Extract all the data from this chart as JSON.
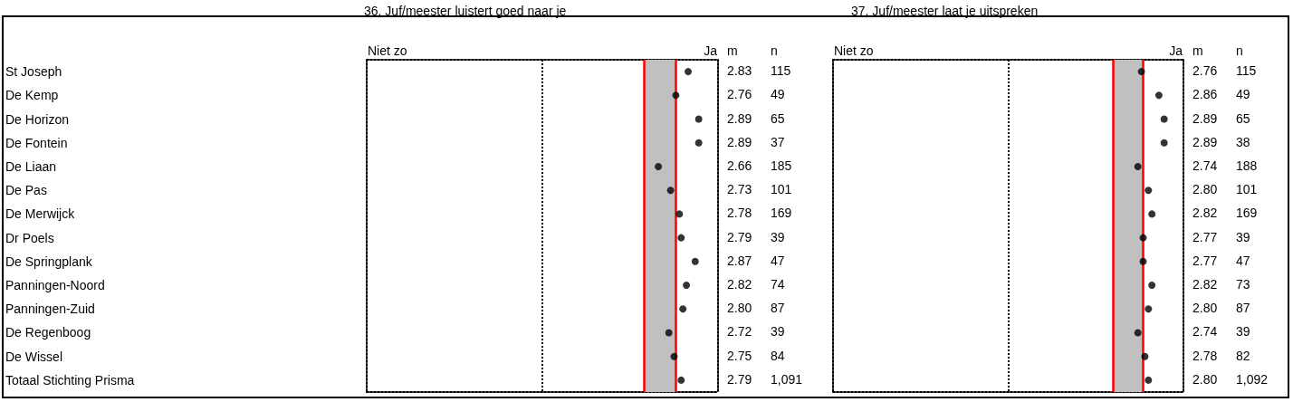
{
  "chart_data": [
    {
      "type": "scatter",
      "title": "36. Juf/meester luistert goed naar je",
      "categories": [
        "St Joseph",
        "De Kemp",
        "De Horizon",
        "De Fontein",
        "De Liaan",
        "De Pas",
        "De Merwijck",
        "Dr Poels",
        "De Springplank",
        "Panningen-Noord",
        "Panningen-Zuid",
        "De Regenboog",
        "De Wissel",
        "Totaal Stichting Prisma"
      ],
      "values": [
        2.83,
        2.76,
        2.89,
        2.89,
        2.66,
        2.73,
        2.78,
        2.79,
        2.87,
        2.82,
        2.8,
        2.72,
        2.75,
        2.79
      ],
      "value_labels": [
        "2.83",
        "2.76",
        "2.89",
        "2.89",
        "2.66",
        "2.73",
        "2.78",
        "2.79",
        "2.87",
        "2.82",
        "2.80",
        "2.72",
        "2.75",
        "2.79"
      ],
      "color": "#000000",
      "marker": "circle",
      "orientation": "horizontal",
      "xlim": [
        1,
        3
      ],
      "bands": [
        {
          "axis": "x",
          "from": 2.58,
          "to": 2.76,
          "color": "#c0c0c0"
        }
      ],
      "ref_lines": [
        {
          "axis": "x",
          "value": 2.58,
          "color": "#ff0000"
        },
        {
          "axis": "x",
          "value": 2.76,
          "color": "#ff0000"
        },
        {
          "axis": "x",
          "value": 2,
          "color": "#000000",
          "line_style": "dotted"
        }
      ],
      "annotations": [
        "Niet zo",
        "Ja",
        "m",
        "n",
        "115",
        "49",
        "65",
        "37",
        "185",
        "101",
        "169",
        "39",
        "47",
        "74",
        "87",
        "39",
        "84",
        "1,091"
      ]
    },
    {
      "type": "scatter",
      "title": "37. Juf/meester laat je uitspreken",
      "categories": [
        null,
        null,
        null,
        null,
        null,
        null,
        null,
        null,
        null,
        null,
        null,
        null,
        null,
        null
      ],
      "values": [
        2.76,
        2.86,
        2.89,
        2.89,
        2.74,
        2.8,
        2.82,
        2.77,
        2.77,
        2.82,
        2.8,
        2.74,
        2.78,
        2.8
      ],
      "value_labels": [
        "2.76",
        "2.86",
        "2.89",
        "2.89",
        "2.74",
        "2.80",
        "2.82",
        "2.77",
        "2.77",
        "2.82",
        "2.80",
        "2.74",
        "2.78",
        "2.80"
      ],
      "color": "#000000",
      "marker": "circle",
      "orientation": "horizontal",
      "xlim": [
        1,
        3
      ],
      "bands": [
        {
          "axis": "x",
          "from": 2.6,
          "to": 2.77,
          "color": "#c0c0c0"
        }
      ],
      "ref_lines": [
        {
          "axis": "x",
          "value": 2.6,
          "color": "#ff0000"
        },
        {
          "axis": "x",
          "value": 2.77,
          "color": "#ff0000"
        },
        {
          "axis": "x",
          "value": 2,
          "color": "#000000",
          "line_style": "dotted"
        }
      ],
      "annotations": [
        "Niet zo",
        "Ja",
        "m",
        "n",
        "115",
        "49",
        "65",
        "38",
        "188",
        "101",
        "169",
        "39",
        "47",
        "73",
        "87",
        "39",
        "82",
        "1,092"
      ]
    }
  ]
}
